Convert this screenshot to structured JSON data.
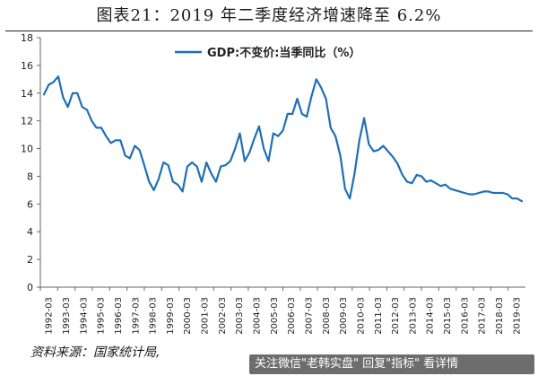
{
  "title": "图表21：2019 年二季度经济增速降至 6.2%",
  "source": "资料来源：国家统计局,",
  "watermark": "关注微信\"老韩实盘\" 回复\"指标\" 看详情",
  "colors": {
    "line": "#1f6fb5",
    "axis": "#666666",
    "text": "#222222"
  },
  "chart_data": {
    "type": "line",
    "title": "",
    "xlabel": "",
    "ylabel": "",
    "ylim": [
      0,
      18
    ],
    "yticks": [
      "0",
      "2",
      "4",
      "6",
      "8",
      "10",
      "12",
      "14",
      "16",
      "18"
    ],
    "grid": false,
    "legend_position": "top-right",
    "x_tick_labels": [
      "1992-03",
      "1993-03",
      "1994-03",
      "1995-03",
      "1996-03",
      "1997-03",
      "1998-03",
      "1999-03",
      "2000-03",
      "2001-03",
      "2002-03",
      "2003-03",
      "2004-03",
      "2005-03",
      "2006-03",
      "2007-03",
      "2008-03",
      "2009-03",
      "2010-03",
      "2011-03",
      "2012-03",
      "2013-03",
      "2014-03",
      "2015-03",
      "2016-03",
      "2017-03",
      "2018-03",
      "2019-03"
    ],
    "series": [
      {
        "name": "GDP:不变价:当季同比（%）",
        "values": [
          13.9,
          14.6,
          14.8,
          15.2,
          13.7,
          13.0,
          14.0,
          14.0,
          13.0,
          12.8,
          12.0,
          11.5,
          11.5,
          10.9,
          10.4,
          10.6,
          10.6,
          9.5,
          9.3,
          10.2,
          9.9,
          8.8,
          7.6,
          7.0,
          7.8,
          9.0,
          8.8,
          7.6,
          7.4,
          6.9,
          8.7,
          9.0,
          8.7,
          7.6,
          9.0,
          8.2,
          7.6,
          8.7,
          8.8,
          9.1,
          10.0,
          11.1,
          9.1,
          9.7,
          10.7,
          11.6,
          10.0,
          9.1,
          11.1,
          10.9,
          11.3,
          12.5,
          12.5,
          13.6,
          12.5,
          12.3,
          13.8,
          15.0,
          14.4,
          13.6,
          11.5,
          10.9,
          9.5,
          7.1,
          6.4,
          8.2,
          10.6,
          12.2,
          10.3,
          9.8,
          9.9,
          10.2,
          9.8,
          9.4,
          8.9,
          8.1,
          7.6,
          7.5,
          8.1,
          8.0,
          7.6,
          7.7,
          7.5,
          7.3,
          7.4,
          7.1,
          7.0,
          6.9,
          6.8,
          6.7,
          6.7,
          6.8,
          6.9,
          6.9,
          6.8,
          6.8,
          6.8,
          6.7,
          6.4,
          6.4,
          6.2
        ]
      }
    ]
  }
}
